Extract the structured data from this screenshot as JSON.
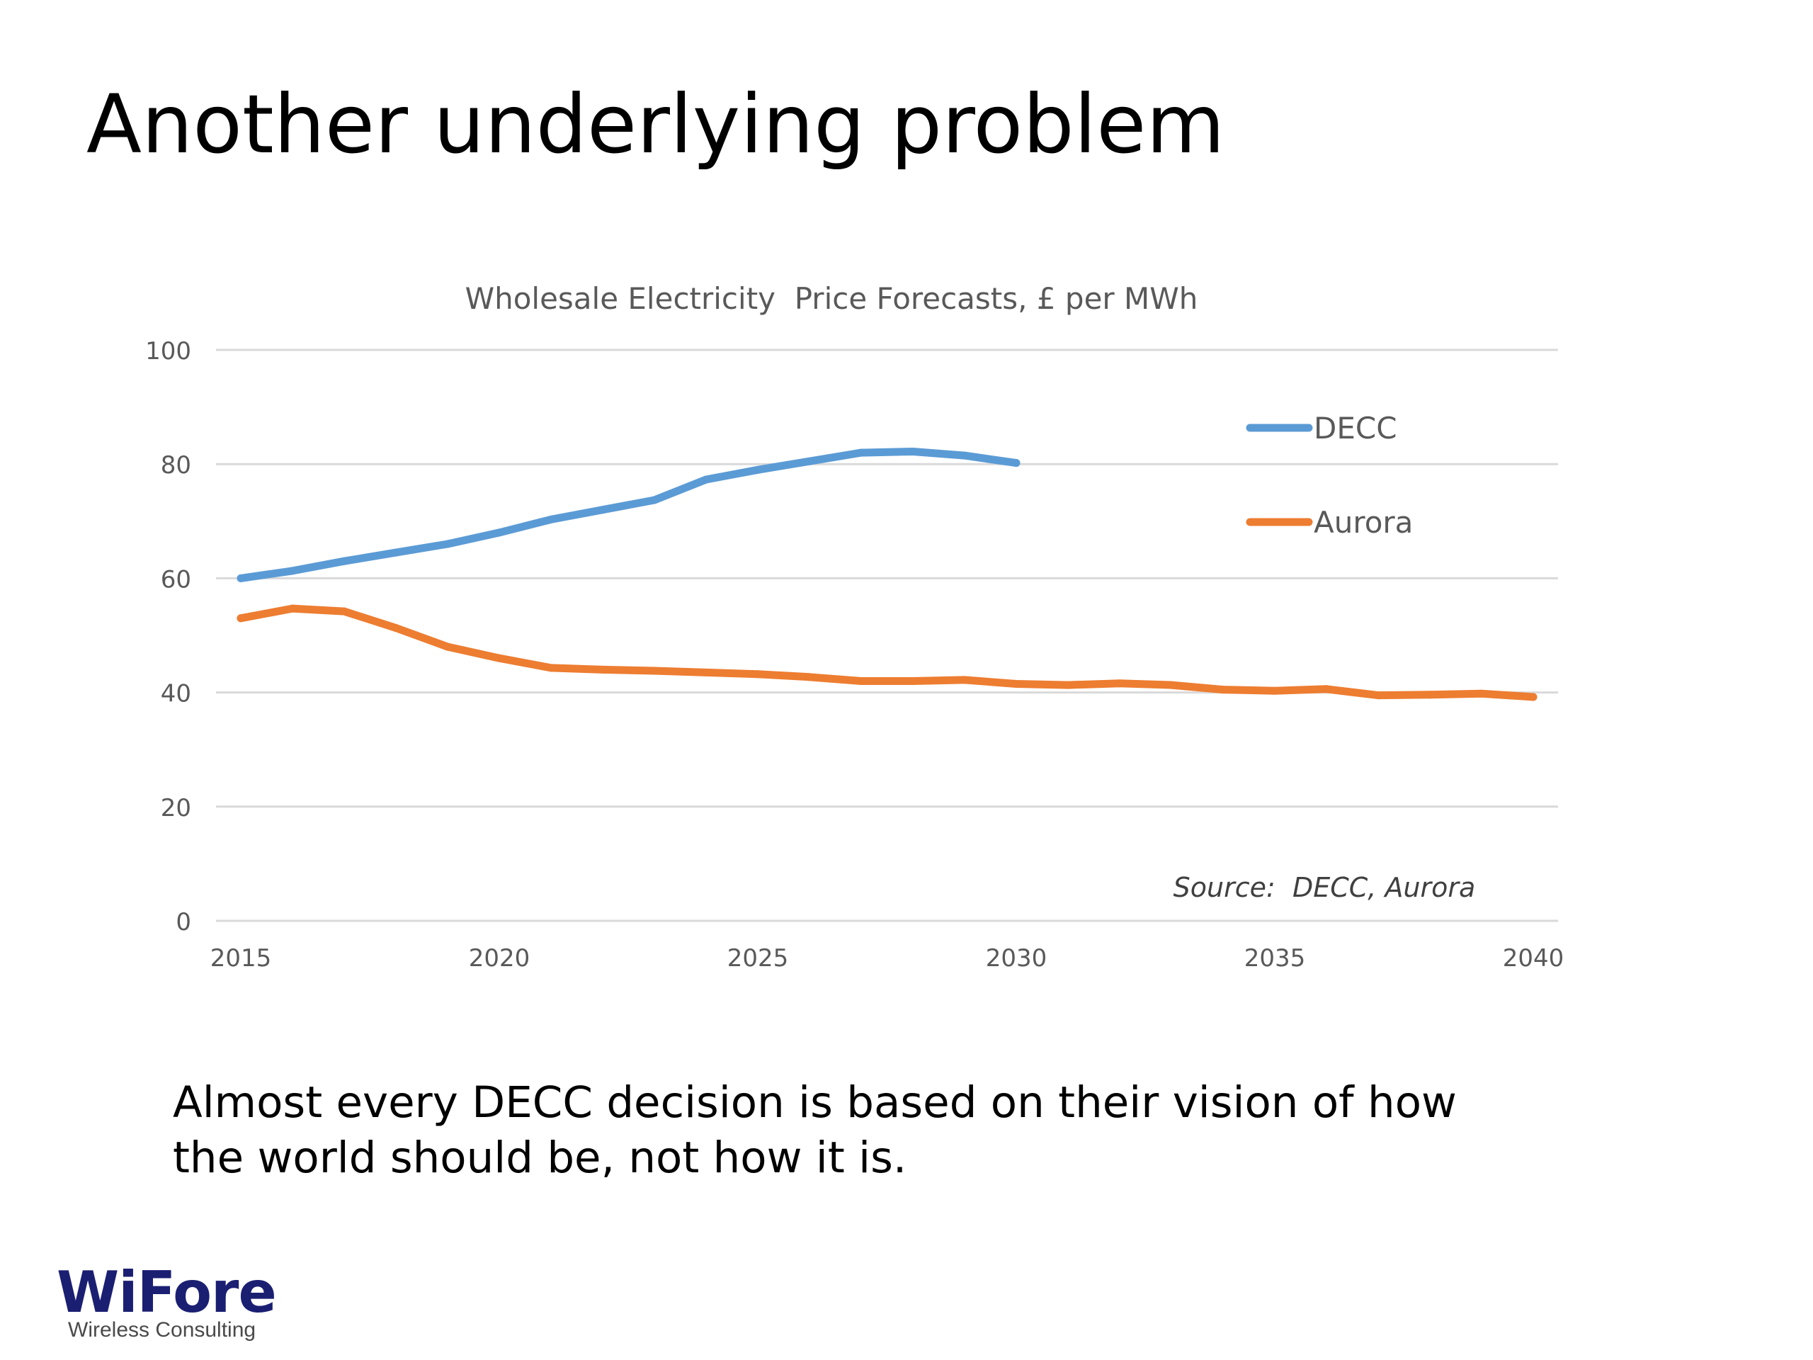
{
  "slide": {
    "title": "Another underlying problem",
    "caption_line1": "Almost every DECC decision is based on their vision of how",
    "caption_line2": "the world should be, not how it is."
  },
  "logo": {
    "name": "WiFore",
    "tagline": "Wireless Consulting",
    "color": "#1b1f72"
  },
  "chart_data": {
    "type": "line",
    "title": "Wholesale Electricity  Price Forecasts, £ per MWh",
    "annotation": "Source:  DECC, Aurora",
    "xlim": [
      2015,
      2040
    ],
    "ylim": [
      0,
      100
    ],
    "x_ticks": [
      2015,
      2020,
      2025,
      2030,
      2035,
      2040
    ],
    "y_ticks": [
      0,
      20,
      40,
      60,
      80,
      100
    ],
    "grid": true,
    "legend_position": "top-right",
    "series": [
      {
        "name": "DECC",
        "color": "#5b9bd5",
        "x": [
          2015,
          2016,
          2017,
          2018,
          2019,
          2020,
          2021,
          2022,
          2023,
          2024,
          2025,
          2026,
          2027,
          2028,
          2029,
          2030
        ],
        "values": [
          60,
          61.3,
          63,
          64.5,
          66,
          68,
          70.3,
          72,
          73.7,
          77.3,
          79,
          80.5,
          82,
          82.2,
          81.5,
          80.2
        ]
      },
      {
        "name": "Aurora",
        "color": "#ed7d31",
        "x": [
          2015,
          2016,
          2017,
          2018,
          2019,
          2020,
          2021,
          2022,
          2023,
          2024,
          2025,
          2026,
          2027,
          2028,
          2029,
          2030,
          2031,
          2032,
          2033,
          2034,
          2035,
          2036,
          2037,
          2038,
          2039,
          2040
        ],
        "values": [
          53,
          54.7,
          54.2,
          51.3,
          48,
          46,
          44.3,
          44,
          43.8,
          43.5,
          43.2,
          42.7,
          42,
          42,
          42.2,
          41.5,
          41.3,
          41.6,
          41.3,
          40.5,
          40.3,
          40.6,
          39.5,
          39.6,
          39.8,
          39.2
        ]
      }
    ]
  }
}
